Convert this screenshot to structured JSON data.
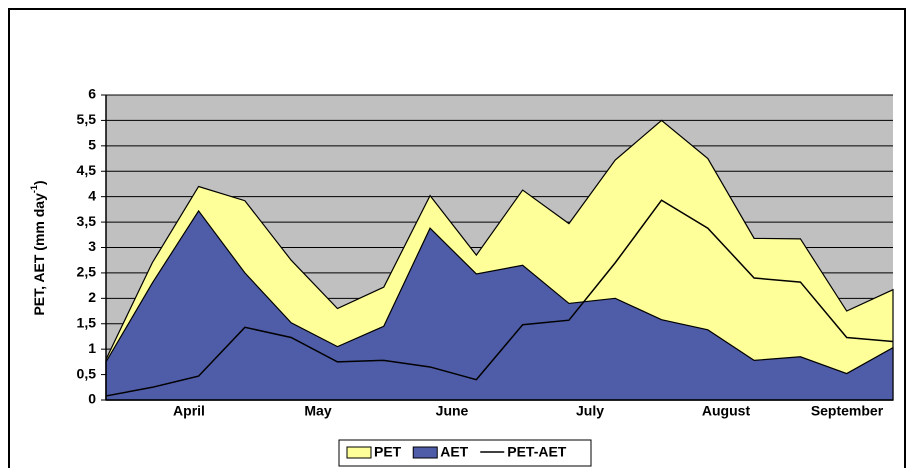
{
  "chart_data": {
    "type": "area",
    "y_label": {
      "text": "PET, AET (mm day",
      "sup": "-1",
      "end": ")"
    },
    "x_labels": [
      "April",
      "May",
      "June",
      "July",
      "August",
      "September"
    ],
    "series": [
      {
        "name": "PET",
        "color": "#ffff99",
        "style": "area",
        "values": [
          0.8,
          2.7,
          4.2,
          3.92,
          2.75,
          1.8,
          2.22,
          4.02,
          2.85,
          4.13,
          3.47,
          4.72,
          5.5,
          4.75,
          3.18,
          3.17,
          1.75,
          2.17
        ]
      },
      {
        "name": "AET",
        "color": "#4f5da8",
        "style": "area",
        "values": [
          0.75,
          2.3,
          3.72,
          2.5,
          1.52,
          1.05,
          1.45,
          3.38,
          2.48,
          2.65,
          1.9,
          2.0,
          1.58,
          1.38,
          0.78,
          0.85,
          0.52,
          1.03
        ]
      },
      {
        "name": "PET-AET",
        "color": "#000000",
        "style": "line",
        "values": [
          0.08,
          0.25,
          0.47,
          1.43,
          1.23,
          0.75,
          0.78,
          0.65,
          0.4,
          1.48,
          1.57,
          2.7,
          3.93,
          3.38,
          2.4,
          2.32,
          1.23,
          1.15
        ]
      }
    ],
    "ylim": [
      0,
      6
    ],
    "yticks": [
      0,
      {
        "value": 0.5,
        "label": "0,5"
      },
      1,
      {
        "value": 1.5,
        "label": "1,5"
      },
      2,
      {
        "value": 2.5,
        "label": "2,5"
      },
      3,
      {
        "value": 3.5,
        "label": "3,5"
      },
      4,
      {
        "value": 4.5,
        "label": "4,5"
      },
      5,
      {
        "value": 5.5,
        "label": "5,5"
      },
      6
    ],
    "grid": true,
    "legend": "bottom"
  }
}
